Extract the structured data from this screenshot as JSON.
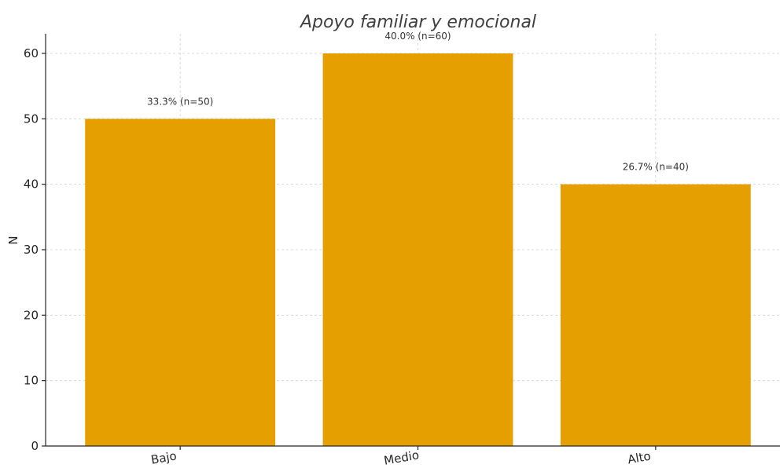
{
  "chart_data": {
    "type": "bar",
    "title": "Apoyo familiar y emocional",
    "xlabel": "",
    "ylabel": "N",
    "categories": [
      "Bajo",
      "Medio",
      "Alto"
    ],
    "values": [
      50,
      60,
      40
    ],
    "data_labels": [
      "33.3% (n=50)",
      "40.0% (n=60)",
      "26.7% (n=40)"
    ],
    "ylim": [
      0,
      63
    ],
    "yticks": [
      0,
      10,
      20,
      30,
      40,
      50,
      60
    ],
    "grid": true,
    "bar_color": "#E69F00"
  }
}
